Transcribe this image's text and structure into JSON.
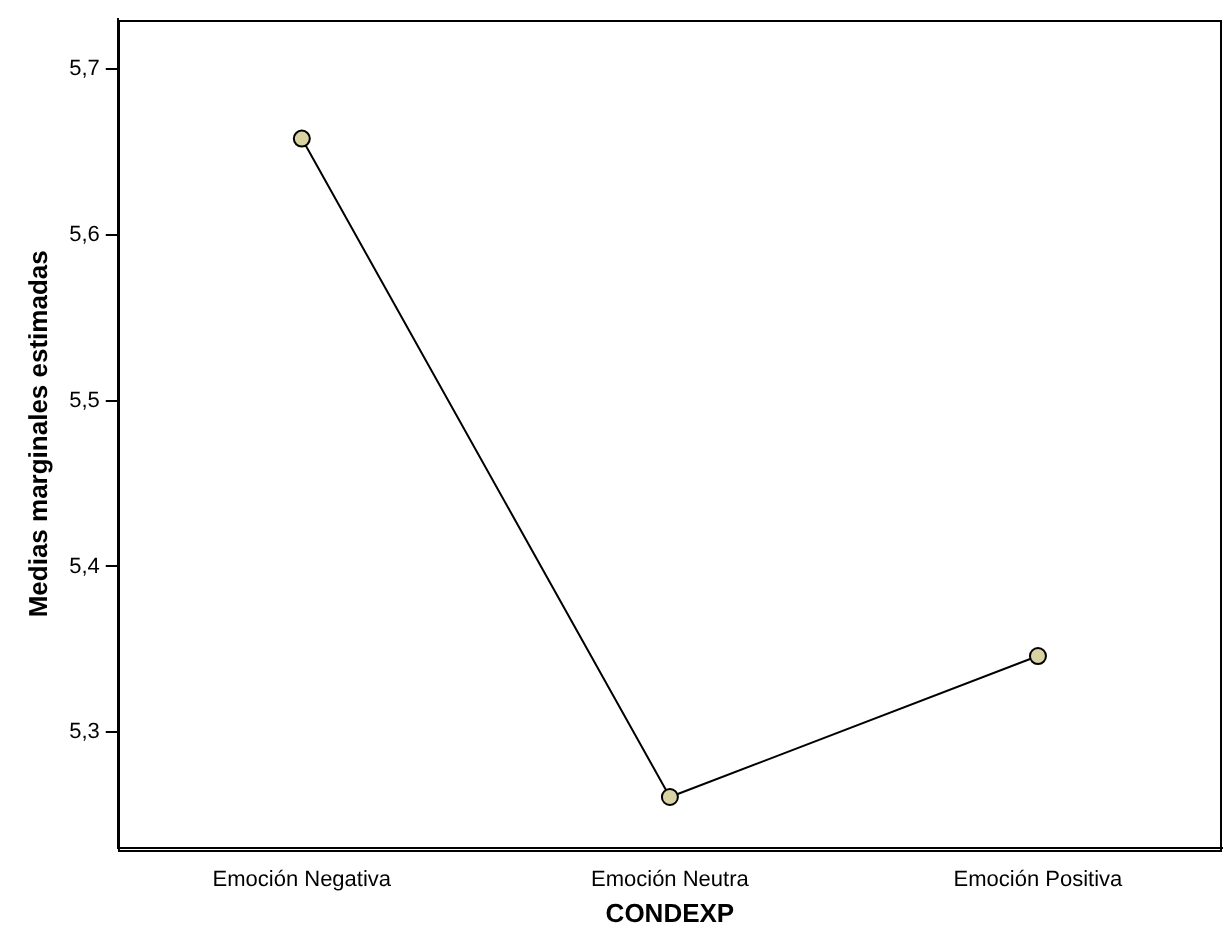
{
  "chart_data": {
    "type": "line",
    "xlabel": "CONDEXP",
    "ylabel": "Medias marginales estimadas",
    "categories": [
      "Emoción Negativa",
      "Emoción Neutra",
      "Emoción Positiva"
    ],
    "series": [
      {
        "color": "#000000",
        "values": [
          5.658,
          5.261,
          5.346
        ]
      }
    ],
    "ylim": [
      5.23,
      5.73
    ],
    "yticks": [
      {
        "value": 5.3,
        "label": "5,3"
      },
      {
        "value": 5.4,
        "label": "5,4"
      },
      {
        "value": 5.5,
        "label": "5,5"
      },
      {
        "value": 5.6,
        "label": "5,6"
      },
      {
        "value": 5.7,
        "label": "5,7"
      }
    ],
    "grid": false,
    "legend": false,
    "marker": "circle",
    "line_style": "solid"
  }
}
